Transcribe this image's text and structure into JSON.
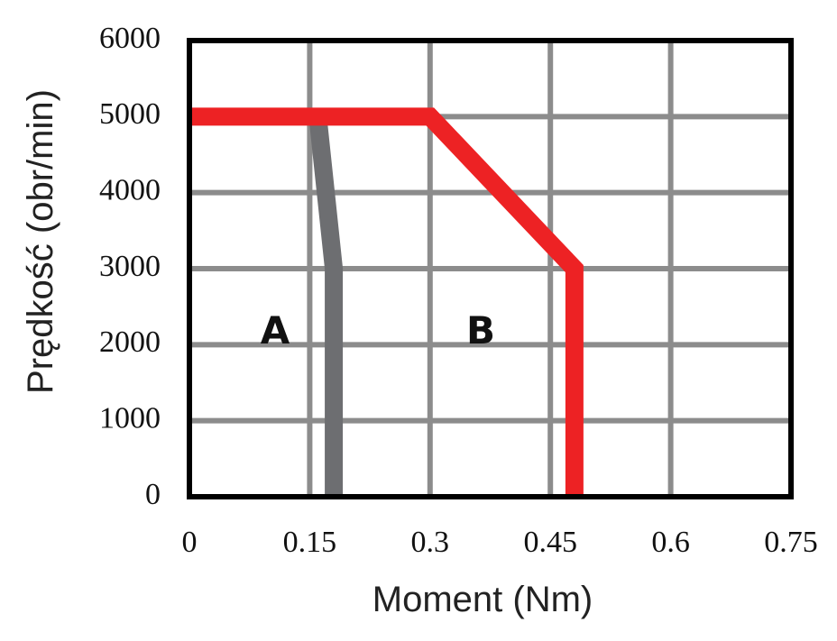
{
  "chart_data": {
    "type": "line",
    "x_label": "Moment (Nm)",
    "y_label": "Prędkość (obr/min)",
    "series": [
      {
        "name": "A",
        "color": "#6d6e71",
        "x": [
          0.16,
          0.18,
          0.18
        ],
        "values": [
          5000,
          3000,
          0
        ]
      },
      {
        "name": "B",
        "color": "#ed2224",
        "x": [
          0,
          0.3,
          0.48,
          0.48
        ],
        "values": [
          5000,
          5000,
          3000,
          0
        ]
      }
    ],
    "xlim": [
      0,
      0.75
    ],
    "xticks": [
      0,
      0.15,
      0.3,
      0.45,
      0.6,
      0.75
    ],
    "ylim": [
      0,
      6000
    ],
    "yticks": [
      0,
      1000,
      2000,
      3000,
      4000,
      5000,
      6000
    ],
    "grid": true
  }
}
